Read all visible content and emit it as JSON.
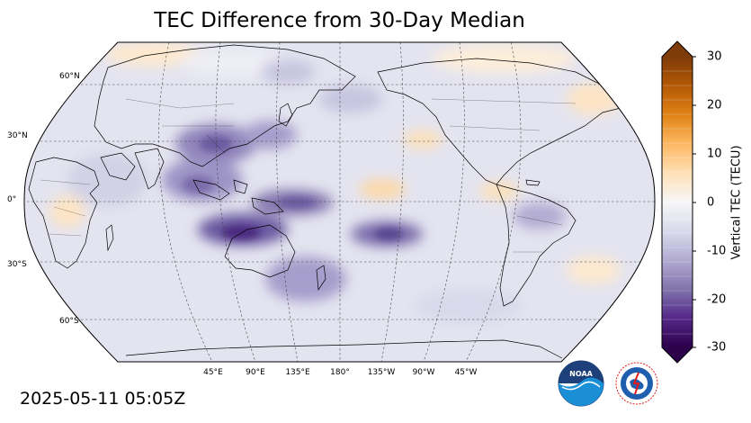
{
  "title": "TEC Difference from 30-Day Median",
  "timestamp": "2025-05-11 05:05Z",
  "map": {
    "projection": "Robinson, centered 180°",
    "lat_labels": [
      "60°N",
      "30°N",
      "0°",
      "30°S",
      "60°S"
    ],
    "lon_labels": [
      "45°E",
      "90°E",
      "135°E",
      "180°",
      "135°W",
      "90°W",
      "45°W"
    ]
  },
  "colorbar": {
    "label": "Vertical TEC (TECU)",
    "ticks": [
      "30",
      "20",
      "10",
      "0",
      "-10",
      "-20",
      "-30"
    ],
    "range": [
      -30,
      30
    ],
    "colormap": "PuOr_r",
    "colors": [
      "#2d004b",
      "#542788",
      "#8073ac",
      "#b2abd2",
      "#d8daeb",
      "#f7f7f7",
      "#fee0b6",
      "#fdb863",
      "#e08214",
      "#b35806",
      "#7f3b08"
    ]
  },
  "logos": {
    "noaa": "NOAA",
    "nws": "NATIONAL WEATHER SERVICE"
  }
}
